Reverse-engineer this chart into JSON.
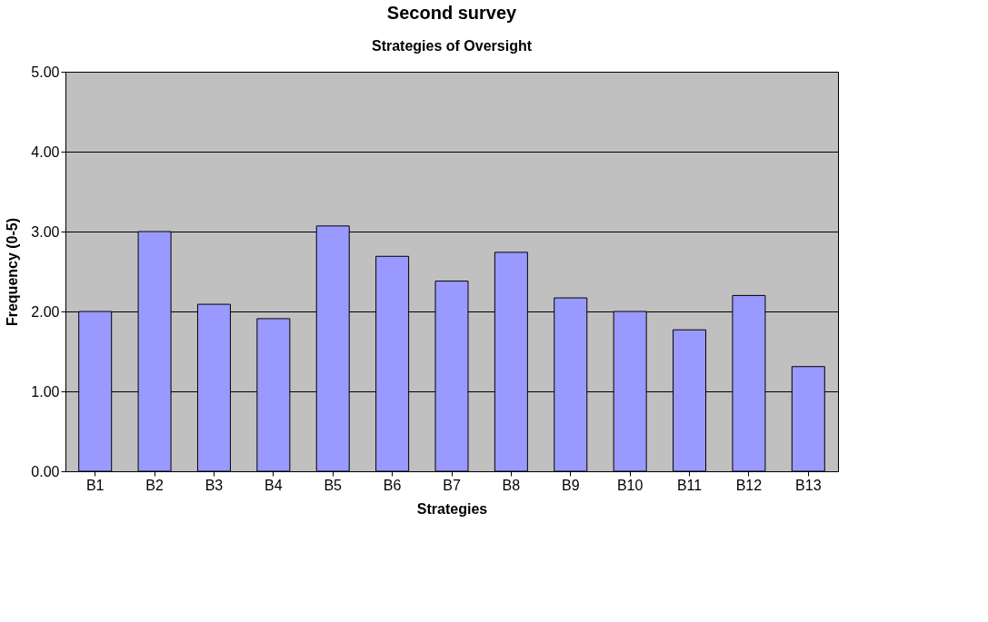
{
  "chart_data": {
    "type": "bar",
    "title": "Second survey",
    "subtitle": "Strategies of Oversight",
    "xlabel": "Strategies",
    "ylabel": "Frequency (0-5)",
    "categories": [
      "B1",
      "B2",
      "B3",
      "B4",
      "B5",
      "B6",
      "B7",
      "B8",
      "B9",
      "B10",
      "B11",
      "B12",
      "B13"
    ],
    "values": [
      2.0,
      3.0,
      2.09,
      1.91,
      3.07,
      2.69,
      2.38,
      2.74,
      2.17,
      2.0,
      1.77,
      2.2,
      1.31
    ],
    "color": "#9999ff",
    "ylim": [
      0,
      5
    ],
    "yticks": [
      {
        "value": 0,
        "label": "0.00"
      },
      {
        "value": 1,
        "label": "1.00"
      },
      {
        "value": 2,
        "label": "2.00"
      },
      {
        "value": 3,
        "label": "3.00"
      },
      {
        "value": 4,
        "label": "4.00"
      },
      {
        "value": 5,
        "label": "5.00"
      }
    ],
    "grid": "y"
  }
}
